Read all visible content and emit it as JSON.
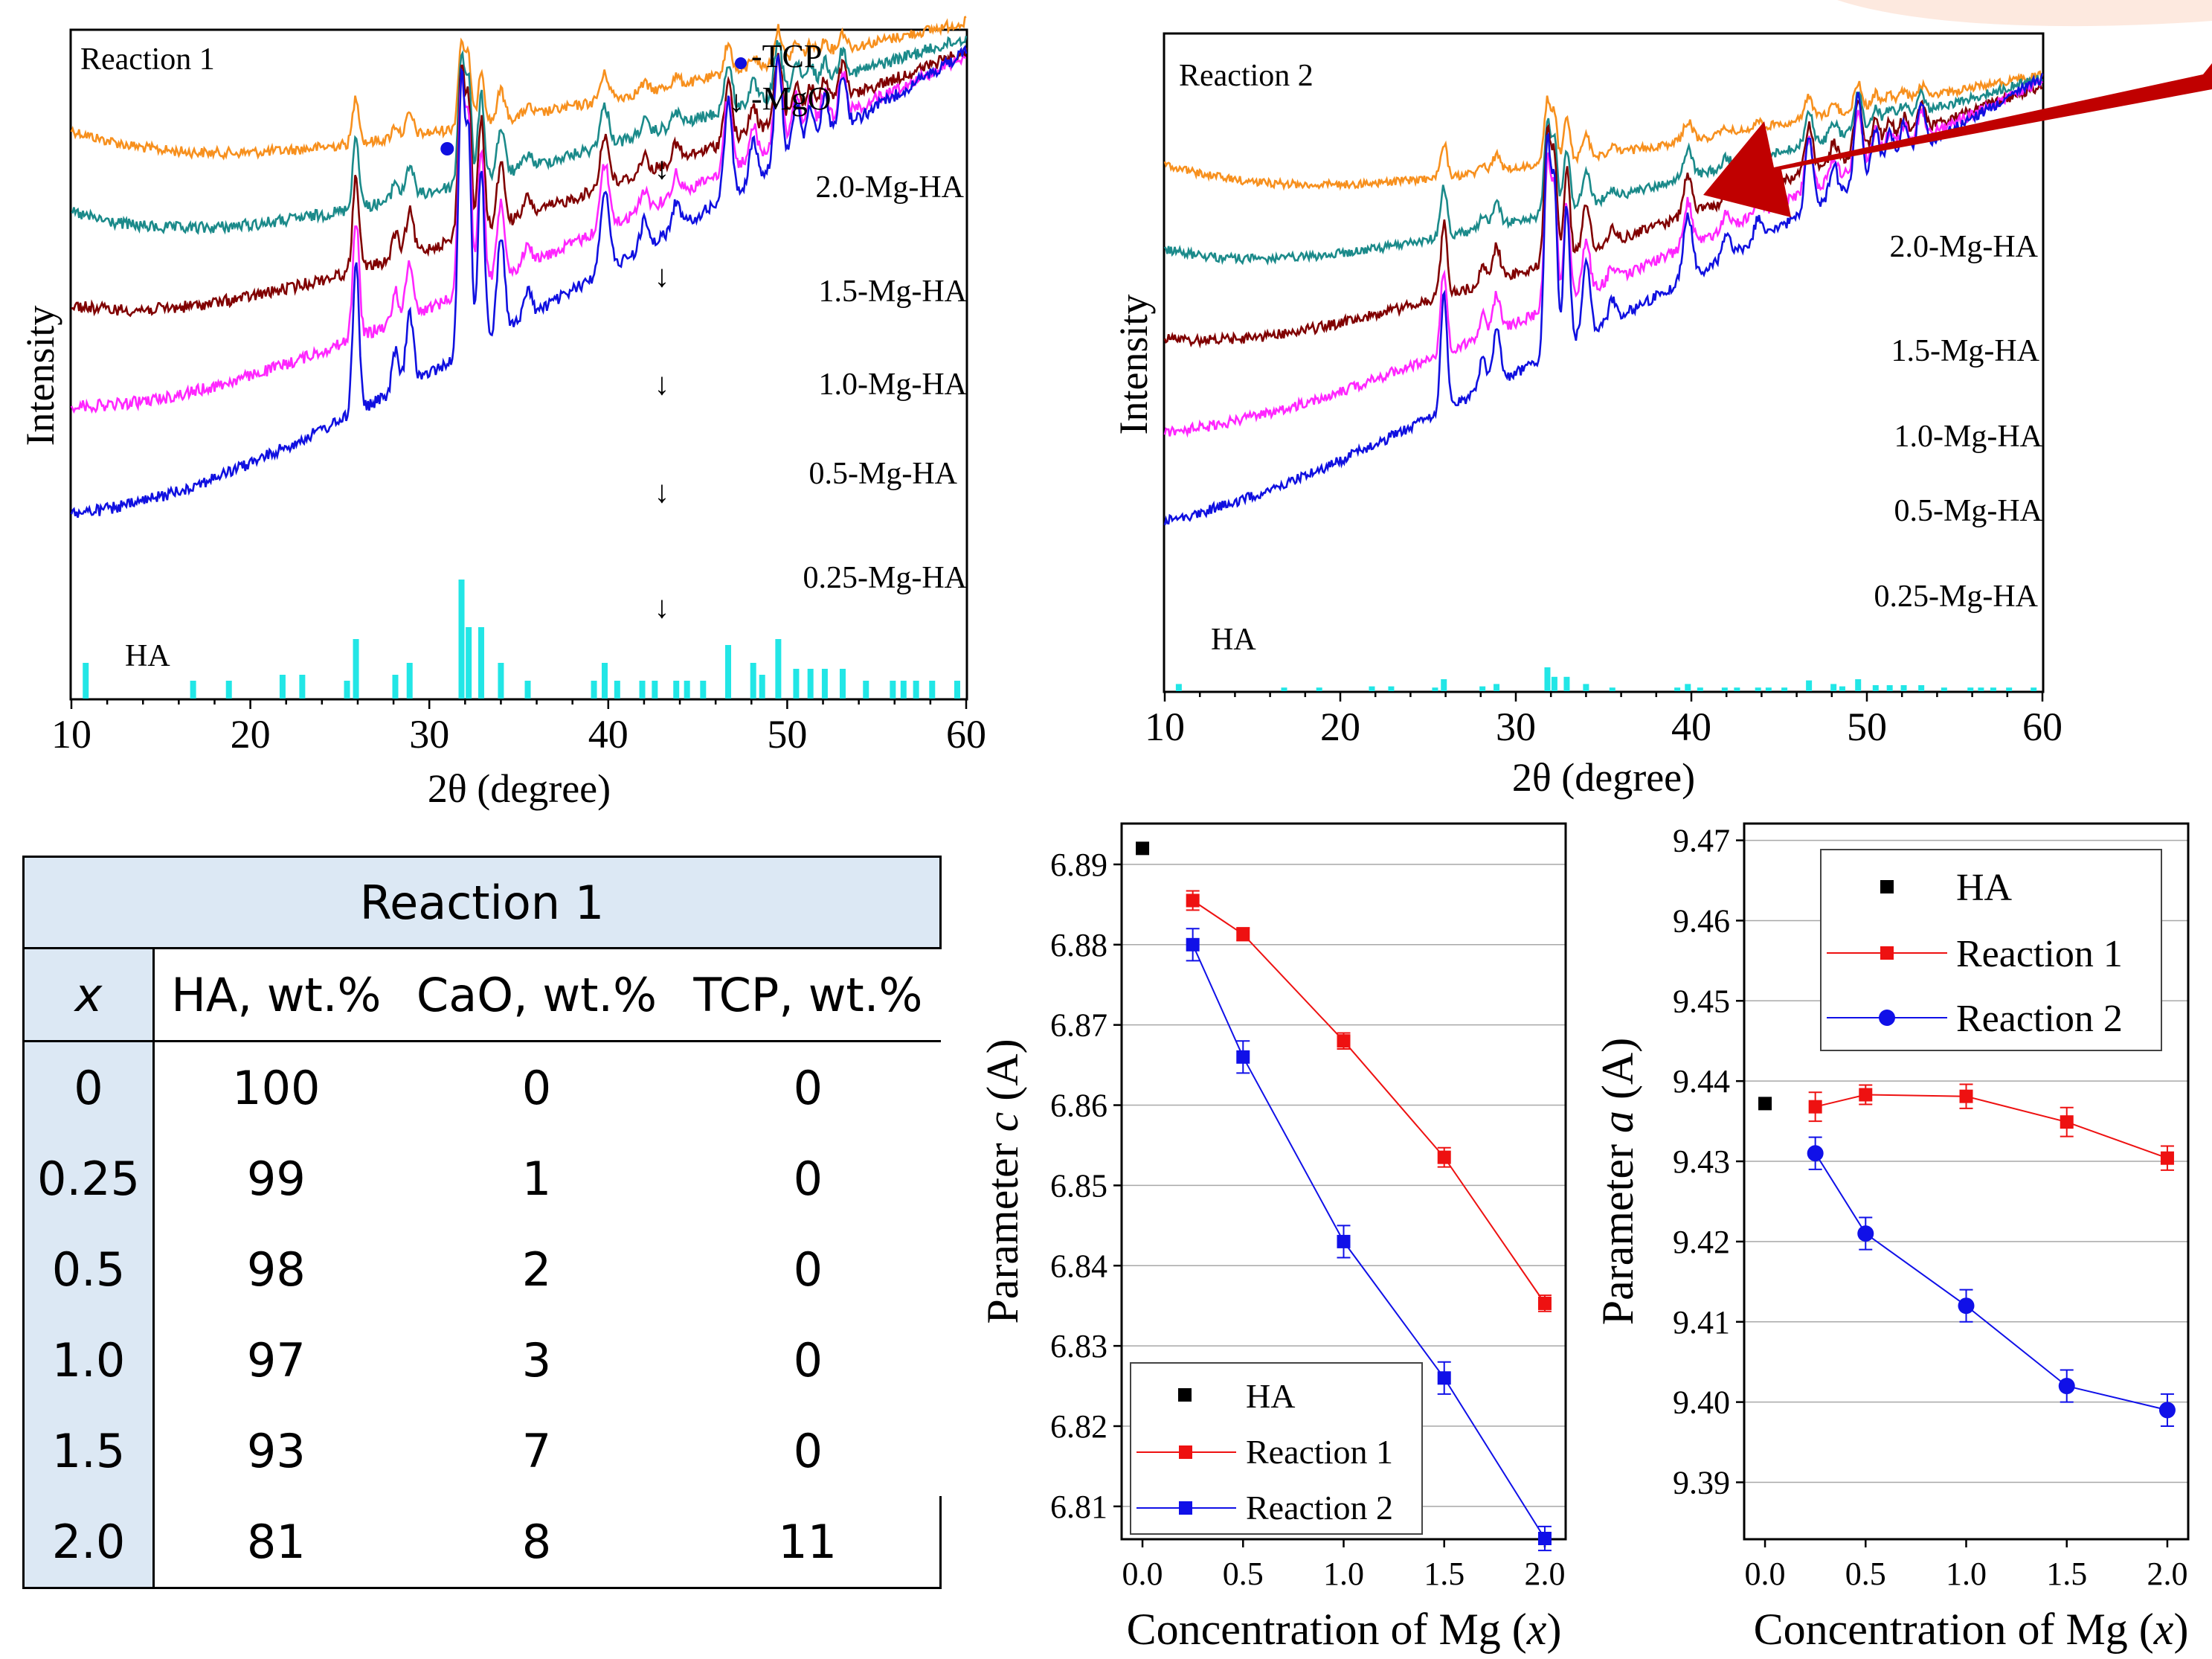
{
  "colors": {
    "orange": "#f7901e",
    "teal": "#1b8a8a",
    "maroon": "#800000",
    "magenta": "#ff26ff",
    "blue": "#1010e0",
    "cyan": "#22e6e6",
    "red": "#ee1111",
    "arrow": "#c00000",
    "table_fill": "#dce8f4"
  },
  "chart_data": [
    {
      "type": "line",
      "title": "Reaction 1",
      "xlabel": "2θ (degree)",
      "ylabel": "Intensity",
      "xlim": [
        10,
        60
      ],
      "xticks": [
        "10",
        "20",
        "30",
        "40",
        "50",
        "60"
      ],
      "legend": [
        {
          "marker": "dot",
          "label": "-TCP"
        },
        {
          "marker": "down-arrow",
          "label": "-MgO"
        }
      ],
      "series": [
        {
          "name": "2.0-Mg-HA",
          "color": "orange"
        },
        {
          "name": "1.5-Mg-HA",
          "color": "teal"
        },
        {
          "name": "1.0-Mg-HA",
          "color": "maroon"
        },
        {
          "name": "0.5-Mg-HA",
          "color": "magenta"
        },
        {
          "name": "0.25-Mg-HA",
          "color": "blue"
        }
      ],
      "reference_label": "HA",
      "mgo_markers_x": [
        43,
        43,
        43,
        43,
        43
      ],
      "tcp_marker_x": 31
    },
    {
      "type": "line",
      "title": "Reaction 2",
      "xlabel": "2θ (degree)",
      "ylabel": "Intensity",
      "xlim": [
        10,
        60
      ],
      "xticks": [
        "10",
        "20",
        "30",
        "40",
        "50",
        "60"
      ],
      "series": [
        {
          "name": "2.0-Mg-HA",
          "color": "orange"
        },
        {
          "name": "1.5-Mg-HA",
          "color": "teal"
        },
        {
          "name": "1.0-Mg-HA",
          "color": "maroon"
        },
        {
          "name": "0.5-Mg-HA",
          "color": "magenta"
        },
        {
          "name": "0.25-Mg-HA",
          "color": "blue"
        }
      ],
      "reference_label": "HA"
    },
    {
      "type": "table",
      "title": "Reaction 1",
      "columns": [
        "x",
        "HA, wt.%",
        "CaO, wt.%",
        "TCP, wt.%"
      ],
      "rows": [
        [
          "0",
          "100",
          "0",
          "0"
        ],
        [
          "0.25",
          "99",
          "1",
          "0"
        ],
        [
          "0.5",
          "98",
          "2",
          "0"
        ],
        [
          "1.0",
          "97",
          "3",
          "0"
        ],
        [
          "1.5",
          "93",
          "7",
          "0"
        ],
        [
          "2.0",
          "81",
          "8",
          "11"
        ]
      ]
    },
    {
      "type": "scatter",
      "xlabel": "Concentration of Mg (x)",
      "ylabel": "Parameter c (A)",
      "xlim": [
        -0.1,
        2.1
      ],
      "ylim": [
        6.806,
        6.895
      ],
      "xticks": [
        "0.0",
        "0.5",
        "1.0",
        "1.5",
        "2.0"
      ],
      "yticks": [
        "6.81",
        "6.82",
        "6.83",
        "6.84",
        "6.85",
        "6.86",
        "6.87",
        "6.88",
        "6.89"
      ],
      "legend_position": "bottom-left",
      "grid": true,
      "series": [
        {
          "name": "HA",
          "color": "#000000",
          "marker": "square",
          "line": false,
          "x": [
            0.0
          ],
          "y": [
            6.892
          ],
          "err": [
            0
          ]
        },
        {
          "name": "Reaction 1",
          "color": "#ee1111",
          "marker": "square",
          "line": true,
          "x": [
            0.25,
            0.5,
            1.0,
            1.5,
            2.0
          ],
          "y": [
            6.8855,
            6.8813,
            6.868,
            6.8535,
            6.8353
          ],
          "err": [
            0.0012,
            0.0008,
            0.001,
            0.0012,
            0.001
          ]
        },
        {
          "name": "Reaction 2",
          "color": "#1010e8",
          "marker": "square",
          "line": true,
          "x": [
            0.25,
            0.5,
            1.0,
            1.5,
            2.0
          ],
          "y": [
            6.88,
            6.866,
            6.843,
            6.826,
            6.806
          ],
          "err": [
            0.002,
            0.002,
            0.002,
            0.002,
            0.0015
          ]
        }
      ]
    },
    {
      "type": "scatter",
      "xlabel": "Concentration of Mg (x)",
      "ylabel": "Parameter a (A)",
      "xlim": [
        -0.1,
        2.1
      ],
      "ylim": [
        9.383,
        9.472
      ],
      "xticks": [
        "0.0",
        "0.5",
        "1.0",
        "1.5",
        "2.0"
      ],
      "yticks": [
        "9.39",
        "9.40",
        "9.41",
        "9.42",
        "9.43",
        "9.44",
        "9.45",
        "9.46",
        "9.47"
      ],
      "legend_position": "top-right",
      "grid": true,
      "series": [
        {
          "name": "HA",
          "color": "#000000",
          "marker": "square",
          "line": false,
          "x": [
            0.0
          ],
          "y": [
            9.4372
          ],
          "err": [
            0
          ]
        },
        {
          "name": "Reaction 1",
          "color": "#ee1111",
          "marker": "square",
          "line": true,
          "x": [
            0.25,
            0.5,
            1.0,
            1.5,
            2.0
          ],
          "y": [
            9.4368,
            9.4383,
            9.4381,
            9.4349,
            9.4304
          ],
          "err": [
            0.0018,
            0.0012,
            0.0015,
            0.0018,
            0.0015
          ]
        },
        {
          "name": "Reaction 2",
          "color": "#1010e8",
          "marker": "circle",
          "line": true,
          "x": [
            0.25,
            0.5,
            1.0,
            1.5,
            2.0
          ],
          "y": [
            9.431,
            9.421,
            9.412,
            9.402,
            9.399
          ],
          "err": [
            0.002,
            0.002,
            0.002,
            0.002,
            0.002
          ]
        }
      ]
    }
  ]
}
